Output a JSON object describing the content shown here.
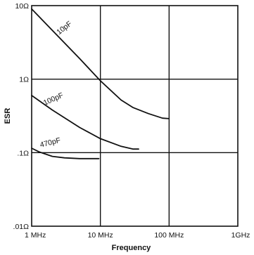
{
  "chart_data": {
    "type": "line",
    "title": "",
    "xlabel": "Frequency",
    "ylabel": "ESR",
    "x_scale": "log",
    "y_scale": "log",
    "xlim": [
      1,
      1000
    ],
    "ylim": [
      0.01,
      10
    ],
    "x_unit": "MHz",
    "y_unit": "Ω",
    "grid": true,
    "legend": "none",
    "x_ticks": [
      {
        "value": 1,
        "label": "1 MHz"
      },
      {
        "value": 10,
        "label": "10 MHz"
      },
      {
        "value": 100,
        "label": "100 MHz"
      },
      {
        "value": 1000,
        "label": "1GHz"
      }
    ],
    "y_ticks": [
      {
        "value": 10,
        "label": "10Ω"
      },
      {
        "value": 1,
        "label": "1Ω"
      },
      {
        "value": 0.1,
        "label": ".1Ω"
      },
      {
        "value": 0.01,
        "label": ".01Ω"
      }
    ],
    "series": [
      {
        "name": "10pF",
        "x": [
          1,
          2,
          5,
          10,
          20,
          30,
          50,
          80,
          100
        ],
        "y": [
          9.0,
          4.6,
          1.9,
          0.95,
          0.52,
          0.41,
          0.34,
          0.295,
          0.29
        ]
      },
      {
        "name": "100pF",
        "x": [
          1,
          2,
          5,
          10,
          20,
          30,
          36
        ],
        "y": [
          0.6,
          0.38,
          0.22,
          0.155,
          0.122,
          0.112,
          0.112
        ]
      },
      {
        "name": "470pF",
        "x": [
          1,
          1.3,
          2,
          3,
          5,
          7,
          9.5
        ],
        "y": [
          0.115,
          0.102,
          0.089,
          0.085,
          0.083,
          0.083,
          0.083
        ]
      }
    ]
  }
}
